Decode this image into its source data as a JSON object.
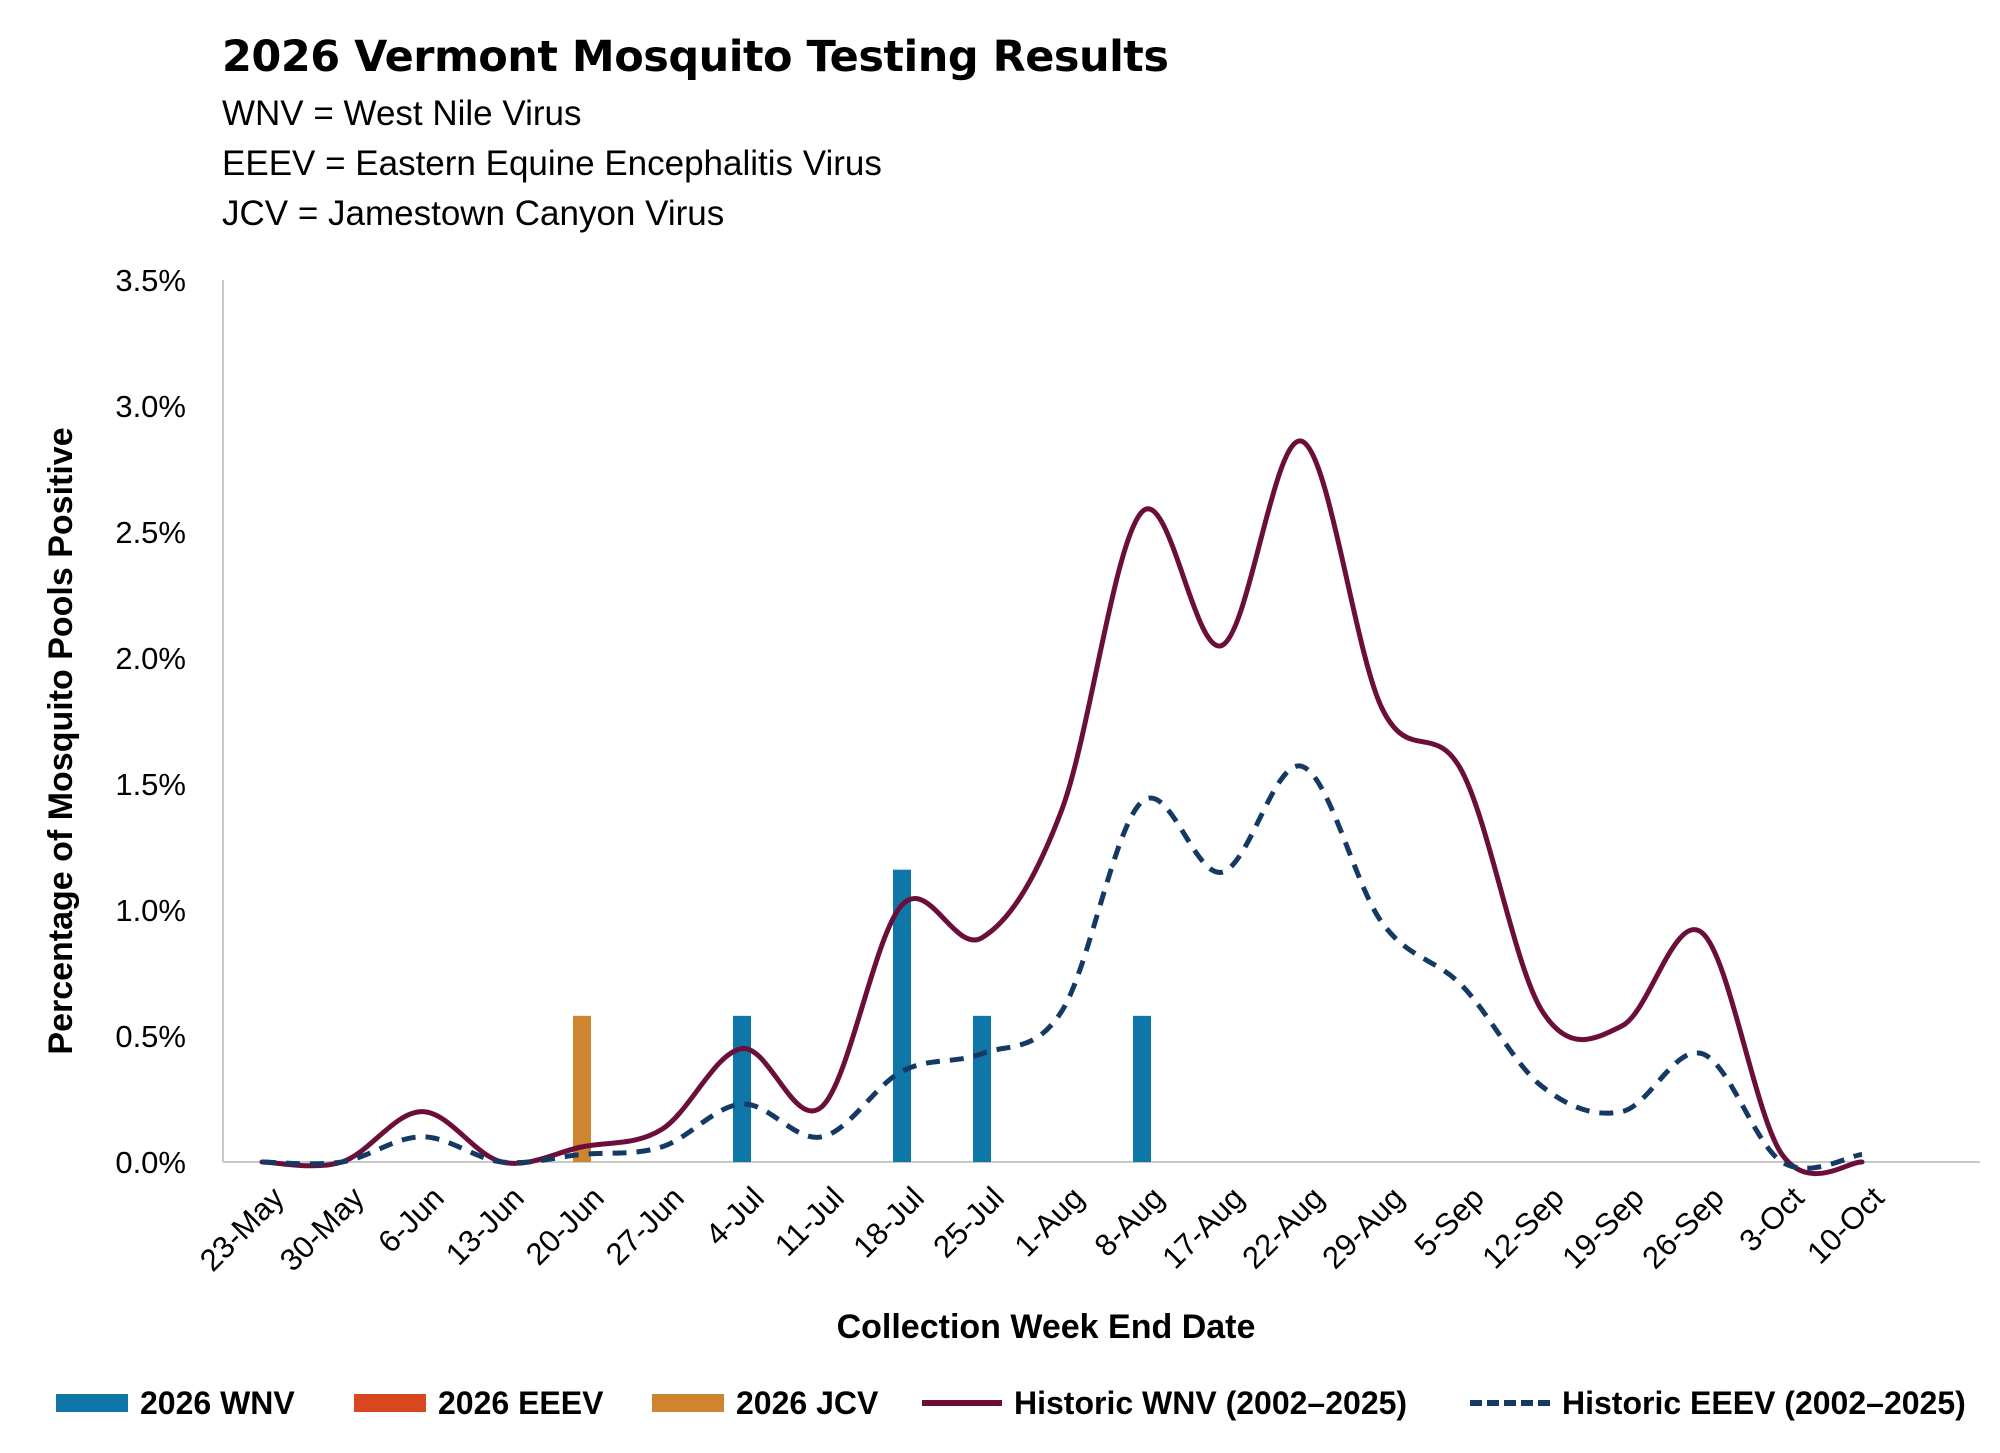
{
  "header": {
    "title": "2026 Vermont Mosquito Testing Results",
    "lines": [
      "WNV = West Nile Virus",
      "EEEV = Eastern Equine Encephalitis Virus",
      "JCV = Jamestown Canyon Virus"
    ]
  },
  "chart_data": {
    "type": "bar",
    "title": "2026 Vermont Mosquito Testing Results",
    "xlabel": "Collection Week End Date",
    "ylabel": "Percentage of Mosquito Pools Positive",
    "categories": [
      "23-May",
      "30-May",
      "6-Jun",
      "13-Jun",
      "20-Jun",
      "27-Jun",
      "4-Jul",
      "11-Jul",
      "18-Jul",
      "25-Jul",
      "1-Aug",
      "8-Aug",
      "17-Aug",
      "22-Aug",
      "29-Aug",
      "5-Sep",
      "12-Sep",
      "19-Sep",
      "26-Sep",
      "3-Oct",
      "10-Oct"
    ],
    "yticks": [
      "0.0%",
      "0.5%",
      "1.0%",
      "1.5%",
      "2.0%",
      "2.5%",
      "3.0%",
      "3.5%"
    ],
    "ylim": [
      0,
      3.5
    ],
    "grid": false,
    "legend_position": "bottom",
    "series": [
      {
        "name": "2026 WNV",
        "type": "bar",
        "color": "#0f77a8",
        "values": [
          null,
          null,
          null,
          null,
          null,
          null,
          0.58,
          null,
          1.16,
          0.58,
          null,
          0.58,
          null,
          null,
          null,
          null,
          null,
          null,
          null,
          null,
          null
        ]
      },
      {
        "name": "2026 EEEV",
        "type": "bar",
        "color": "#d9471f",
        "values": [
          null,
          null,
          null,
          null,
          null,
          null,
          null,
          null,
          null,
          null,
          null,
          null,
          null,
          null,
          null,
          null,
          null,
          null,
          null,
          null,
          null
        ]
      },
      {
        "name": "2026 JCV",
        "type": "bar",
        "color": "#cf8430",
        "values": [
          null,
          null,
          null,
          null,
          0.58,
          null,
          null,
          null,
          null,
          null,
          null,
          null,
          null,
          null,
          null,
          null,
          null,
          null,
          null,
          null,
          null
        ]
      },
      {
        "name": "Historic WNV (2002–2025)",
        "type": "line",
        "style": "solid",
        "color": "#6b0f3a",
        "values": [
          0.0,
          0.0,
          0.2,
          0.0,
          0.06,
          0.13,
          0.45,
          0.22,
          1.02,
          0.89,
          1.4,
          2.58,
          2.05,
          2.86,
          1.8,
          1.55,
          0.6,
          0.54,
          0.91,
          0.03,
          0.0
        ]
      },
      {
        "name": "Historic EEEV (2002–2025)",
        "type": "line",
        "style": "dashed",
        "color": "#143a63",
        "values": [
          0.0,
          0.0,
          0.1,
          0.0,
          0.03,
          0.06,
          0.23,
          0.1,
          0.36,
          0.43,
          0.6,
          1.43,
          1.15,
          1.57,
          0.95,
          0.7,
          0.3,
          0.2,
          0.43,
          0.0,
          0.03
        ]
      }
    ]
  }
}
